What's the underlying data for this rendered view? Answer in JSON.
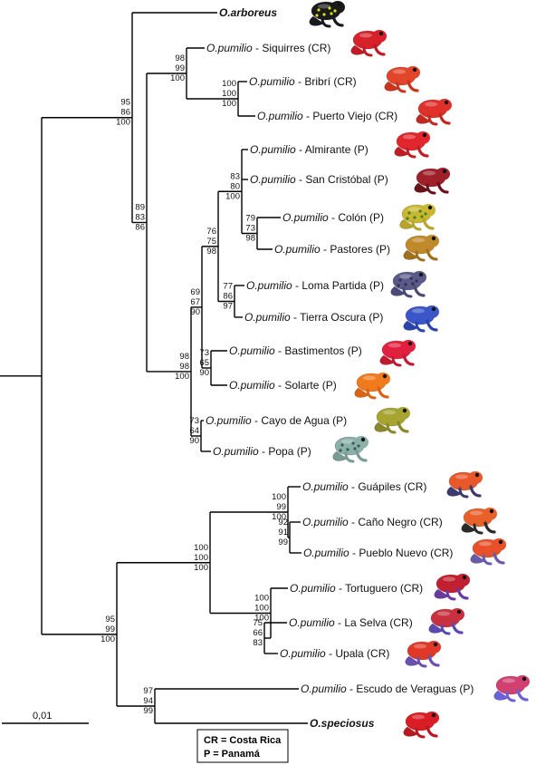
{
  "taxa": [
    {
      "id": "arboreus",
      "species": "O.arboreus",
      "locality": "",
      "bold": true,
      "frog": {
        "body": "#1a1a1a",
        "spots": "#d8e020",
        "legs": "#1a1a1a"
      }
    },
    {
      "id": "siquirres",
      "species": "O.pumilio",
      "locality": " - Siquirres (CR)",
      "frog": {
        "body": "#d8202a",
        "legs": "#c21a24"
      }
    },
    {
      "id": "bribri",
      "species": "O.pumilio",
      "locality": " - Bribrí (CR)",
      "frog": {
        "body": "#e2452a",
        "legs": "#c9341e"
      }
    },
    {
      "id": "puertoviejo",
      "species": "O.pumilio",
      "locality": " - Puerto Viejo (CR)",
      "frog": {
        "body": "#e0302a",
        "legs": "#c52822"
      }
    },
    {
      "id": "almirante",
      "species": "O.pumilio",
      "locality": " - Almirante (P)",
      "frog": {
        "body": "#e1262e",
        "legs": "#c01c24"
      }
    },
    {
      "id": "sancristobal",
      "species": "O.pumilio",
      "locality": " - San Cristóbal (P)",
      "frog": {
        "body": "#a0202a",
        "legs": "#6a1218"
      }
    },
    {
      "id": "colon",
      "species": "O.pumilio",
      "locality": " - Colón (P)",
      "frog": {
        "body": "#c8b830",
        "spots": "#4a7a2a",
        "legs": "#b8a428"
      }
    },
    {
      "id": "pastores",
      "species": "O.pumilio",
      "locality": " - Pastores (P)",
      "frog": {
        "body": "#c08a2a",
        "legs": "#a07020"
      }
    },
    {
      "id": "lomapartida",
      "species": "O.pumilio",
      "locality": " - Loma Partida (P)",
      "frog": {
        "body": "#5a5a8a",
        "spots": "#303050",
        "legs": "#4a4a78"
      }
    },
    {
      "id": "tierraoscura",
      "species": "O.pumilio",
      "locality": " - Tierra Oscura (P)",
      "frog": {
        "body": "#3a56c8",
        "legs": "#2a44a8"
      }
    },
    {
      "id": "bastimentos",
      "species": "O.pumilio",
      "locality": " - Bastimentos (P)",
      "frog": {
        "body": "#e0203e",
        "legs": "#c01a32"
      }
    },
    {
      "id": "solarte",
      "species": "O.pumilio",
      "locality": " - Solarte (P)",
      "frog": {
        "body": "#f07a1c",
        "legs": "#d86414"
      }
    },
    {
      "id": "cayodeagua",
      "species": "O.pumilio",
      "locality": " - Cayo de Agua (P)",
      "frog": {
        "body": "#a8a430",
        "legs": "#8a8828"
      }
    },
    {
      "id": "popa",
      "species": "O.pumilio",
      "locality": " - Popa (P)",
      "frog": {
        "body": "#8ab0a8",
        "spots": "#3a5a58",
        "legs": "#7a9a94"
      }
    },
    {
      "id": "guapiles",
      "species": "O.pumilio",
      "locality": " - Guápiles (CR)",
      "frog": {
        "body": "#e8582a",
        "legs": "#3a3a70"
      }
    },
    {
      "id": "canonegro",
      "species": "O.pumilio",
      "locality": " - Caño Negro (CR)",
      "frog": {
        "body": "#e8602a",
        "legs": "#2a2a2a"
      }
    },
    {
      "id": "pueblonuevo",
      "species": "O.pumilio",
      "locality": " - Pueblo Nuevo (CR)",
      "frog": {
        "body": "#e8502a",
        "legs": "#6a5aa8"
      }
    },
    {
      "id": "tortuguero",
      "species": "O.pumilio",
      "locality": " - Tortuguero (CR)",
      "frog": {
        "body": "#c02030",
        "legs": "#6a3aa0"
      }
    },
    {
      "id": "laselva",
      "species": "O.pumilio",
      "locality": " - La Selva (CR)",
      "frog": {
        "body": "#c83040",
        "legs": "#5a4ab0"
      }
    },
    {
      "id": "upala",
      "species": "O.pumilio",
      "locality": " - Upala (CR)",
      "frog": {
        "body": "#e03828",
        "legs": "#6a50b0"
      }
    },
    {
      "id": "escudo",
      "species": "O.pumilio",
      "locality": " - Escudo de Veraguas (P)",
      "frog": {
        "body": "#d04070",
        "legs": "#6a60d8"
      }
    },
    {
      "id": "speciosus",
      "species": "O.speciosus",
      "locality": "",
      "bold": true,
      "frog": {
        "body": "#d81e24",
        "legs": "#b81820"
      }
    }
  ],
  "supports": [
    {
      "id": "n-cr-atl",
      "values": [
        "98",
        "99",
        "100"
      ]
    },
    {
      "id": "n-bri-pv",
      "values": [
        "100",
        "100",
        "100"
      ]
    },
    {
      "id": "n-top",
      "values": [
        "95",
        "86",
        "100"
      ]
    },
    {
      "id": "n-pan-main",
      "values": [
        "89",
        "83",
        "86"
      ]
    },
    {
      "id": "n-alm-col",
      "values": [
        "83",
        "80",
        "100"
      ]
    },
    {
      "id": "n-col-pas",
      "values": [
        "79",
        "73",
        "98"
      ]
    },
    {
      "id": "n-alm-tie",
      "values": [
        "76",
        "75",
        "98"
      ]
    },
    {
      "id": "n-lom-tie",
      "values": [
        "77",
        "86",
        "97"
      ]
    },
    {
      "id": "n-pan-a",
      "values": [
        "69",
        "67",
        "90"
      ]
    },
    {
      "id": "n-pan-all",
      "values": [
        "98",
        "98",
        "100"
      ]
    },
    {
      "id": "n-bas-sol",
      "values": [
        "73",
        "65",
        "90"
      ]
    },
    {
      "id": "n-cay-pop",
      "values": [
        "73",
        "64",
        "90"
      ]
    },
    {
      "id": "n-gua-pue",
      "values": [
        "100",
        "99",
        "100"
      ]
    },
    {
      "id": "n-can-pue",
      "values": [
        "92",
        "91",
        "99"
      ]
    },
    {
      "id": "n-cr-w",
      "values": [
        "100",
        "100",
        "100"
      ]
    },
    {
      "id": "n-tor-upa",
      "values": [
        "100",
        "100",
        "100"
      ]
    },
    {
      "id": "n-las-upa",
      "values": [
        "75",
        "66",
        "83"
      ]
    },
    {
      "id": "n-bottom",
      "values": [
        "95",
        "99",
        "100"
      ]
    },
    {
      "id": "n-esc-spe",
      "values": [
        "97",
        "94",
        "99"
      ]
    }
  ],
  "scale_bar": {
    "label": "0,01"
  },
  "legend": {
    "lines": [
      "CR = Costa Rica",
      "P = Panamá"
    ]
  }
}
